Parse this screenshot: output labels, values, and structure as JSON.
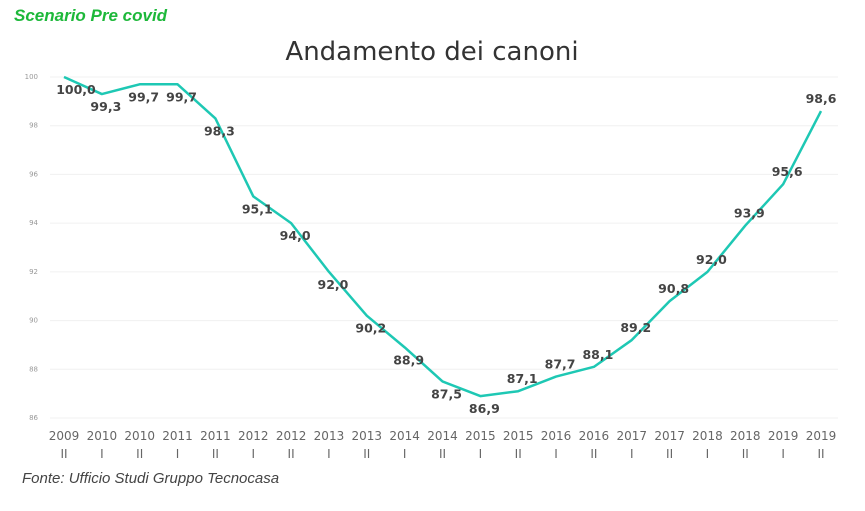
{
  "header": {
    "scenario": "Scenario Pre covid"
  },
  "footer": {
    "source": "Fonte: Ufficio Studi Gruppo Tecnocasa"
  },
  "chart_data": {
    "type": "line",
    "title": "Andamento dei canoni",
    "xlabel": "",
    "ylabel": "",
    "ylim": [
      86,
      100
    ],
    "yticks": [
      86,
      88,
      90,
      92,
      94,
      96,
      98,
      100
    ],
    "grid": true,
    "line_color": "#1ec8b4",
    "categories": [
      [
        "2009",
        "II"
      ],
      [
        "2010",
        "I"
      ],
      [
        "2010",
        "II"
      ],
      [
        "2011",
        "I"
      ],
      [
        "2011",
        "II"
      ],
      [
        "2012",
        "I"
      ],
      [
        "2012",
        "II"
      ],
      [
        "2013",
        "I"
      ],
      [
        "2013",
        "II"
      ],
      [
        "2014",
        "I"
      ],
      [
        "2014",
        "II"
      ],
      [
        "2015",
        "I"
      ],
      [
        "2015",
        "II"
      ],
      [
        "2016",
        "I"
      ],
      [
        "2016",
        "II"
      ],
      [
        "2017",
        "I"
      ],
      [
        "2017",
        "II"
      ],
      [
        "2018",
        "I"
      ],
      [
        "2018",
        "II"
      ],
      [
        "2019",
        "I"
      ],
      [
        "2019",
        "II"
      ]
    ],
    "values": [
      100.0,
      99.3,
      99.7,
      99.7,
      98.3,
      95.1,
      94.0,
      92.0,
      90.2,
      88.9,
      87.5,
      86.9,
      87.1,
      87.7,
      88.1,
      89.2,
      90.8,
      92.0,
      93.9,
      95.6,
      98.6
    ],
    "data_labels": [
      "100,0",
      "99,3",
      "99,7",
      "99,7",
      "98,3",
      "95,1",
      "94,0",
      "92,0",
      "90,2",
      "88,9",
      "87,5",
      "86,9",
      "87,1",
      "87,7",
      "88,1",
      "89,2",
      "90,8",
      "92,0",
      "93,9",
      "95,6",
      "98,6"
    ]
  }
}
